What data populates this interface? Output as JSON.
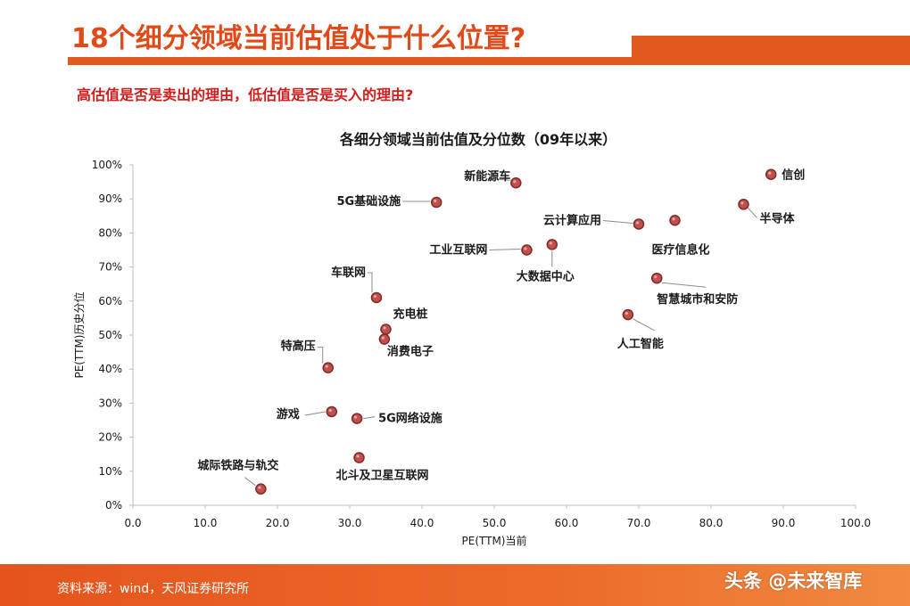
{
  "page": {
    "title": "18个细分领域当前估值处于什么位置?",
    "subtitle": "高估值是否是卖出的理由，低估值是否是买入的理由?",
    "source": "资料来源：wind，天风证券研究所",
    "watermark": "头条 @未来智库"
  },
  "colors": {
    "accent": "#e05a20",
    "subtitle": "#d21c1c",
    "marker_fill": "#c0504d",
    "marker_stroke": "#7f2a28",
    "axis": "#bfbfbf",
    "leader": "#8c8c8c"
  },
  "chart_data": {
    "type": "scatter",
    "title": "各细分领域当前估值及分位数（09年以来）",
    "xlabel": "PE(TTM)当前",
    "ylabel": "PE(TTM)历史分位",
    "xlim": [
      0,
      100
    ],
    "ylim": [
      0,
      1
    ],
    "x_ticks": [
      "0.0",
      "10.0",
      "20.0",
      "30.0",
      "40.0",
      "50.0",
      "60.0",
      "70.0",
      "80.0",
      "90.0",
      "100.0"
    ],
    "y_ticks": [
      "0%",
      "10%",
      "20%",
      "30%",
      "40%",
      "50%",
      "60%",
      "70%",
      "80%",
      "90%",
      "100%"
    ],
    "grid": false,
    "legend": "none",
    "points": [
      {
        "name": "信创",
        "x": 88.3,
        "y": 0.972
      },
      {
        "name": "新能源车",
        "x": 53.0,
        "y": 0.947
      },
      {
        "name": "5G基础设施",
        "x": 42.0,
        "y": 0.89
      },
      {
        "name": "半导体",
        "x": 84.5,
        "y": 0.884
      },
      {
        "name": "医疗信息化",
        "x": 75.0,
        "y": 0.837
      },
      {
        "name": "云计算应用",
        "x": 70.0,
        "y": 0.826
      },
      {
        "name": "大数据中心",
        "x": 58.0,
        "y": 0.766
      },
      {
        "name": "工业互联网",
        "x": 54.5,
        "y": 0.75
      },
      {
        "name": "智慧城市和安防",
        "x": 72.5,
        "y": 0.667
      },
      {
        "name": "车联网",
        "x": 33.7,
        "y": 0.61
      },
      {
        "name": "人工智能",
        "x": 68.5,
        "y": 0.56
      },
      {
        "name": "充电桩",
        "x": 35.0,
        "y": 0.517
      },
      {
        "name": "消费电子",
        "x": 34.8,
        "y": 0.488
      },
      {
        "name": "特高压",
        "x": 27.0,
        "y": 0.404
      },
      {
        "name": "游戏",
        "x": 27.5,
        "y": 0.275
      },
      {
        "name": "5G网络设施",
        "x": 31.0,
        "y": 0.255
      },
      {
        "name": "北斗及卫星互联网",
        "x": 31.3,
        "y": 0.14
      },
      {
        "name": "城际铁路与轨交",
        "x": 17.7,
        "y": 0.048
      }
    ]
  }
}
